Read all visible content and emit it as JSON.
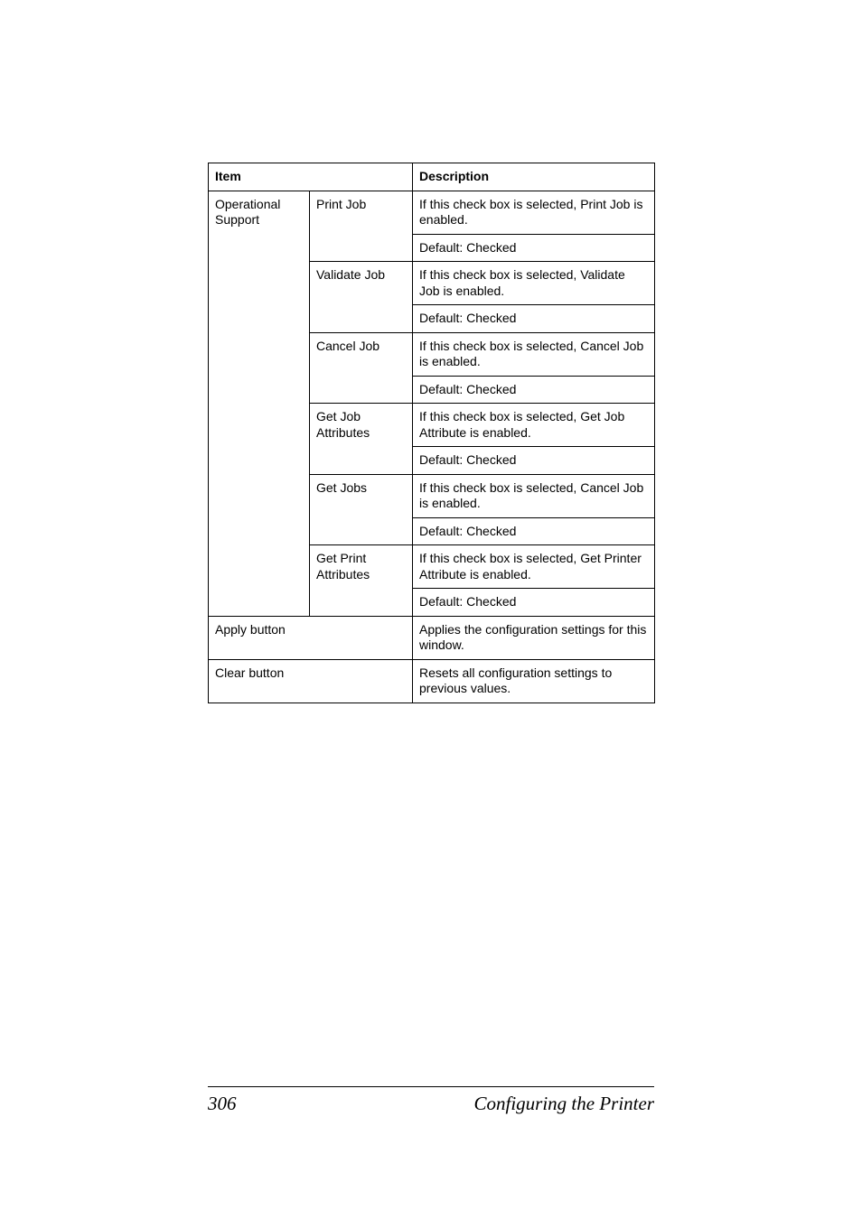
{
  "table": {
    "header": {
      "item": "Item",
      "description": "Description"
    },
    "operational_support": {
      "label": "Operational Support",
      "print_job": {
        "label": "Print Job",
        "desc": "If this check box is selected, Print Job is enabled.",
        "default": "Default:  Checked"
      },
      "validate_job": {
        "label": "Validate Job",
        "desc": "If this check box is selected, Validate Job is enabled.",
        "default": "Default:  Checked"
      },
      "cancel_job": {
        "label": "Cancel Job",
        "desc": "If this check box is selected, Cancel Job is enabled.",
        "default": "Default:  Checked"
      },
      "get_job_attributes": {
        "label": "Get Job Attributes",
        "desc": "If this check box is selected, Get Job Attribute is enabled.",
        "default": "Default:  Checked"
      },
      "get_jobs": {
        "label": "Get Jobs",
        "desc": "If this check box is selected, Cancel Job is enabled.",
        "default": "Default:  Checked"
      },
      "get_print_attributes": {
        "label": "Get Print Attributes",
        "desc": "If this check box is selected, Get Printer Attribute is enabled.",
        "default": "Default:  Checked"
      }
    },
    "apply_button": {
      "label": "Apply button",
      "desc": "Applies the configuration settings for this window."
    },
    "clear_button": {
      "label": "Clear button",
      "desc": "Resets all configuration settings to previous values."
    }
  },
  "footer": {
    "page_number": "306",
    "title": "Configuring the Printer"
  }
}
